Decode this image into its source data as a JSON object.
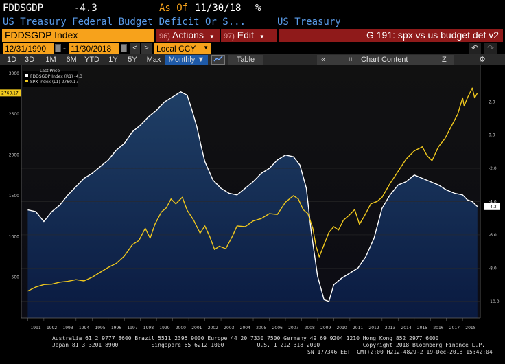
{
  "header": {
    "ticker": "FDDSGDP",
    "last_value": "-4.3",
    "as_of_label": "As Of",
    "as_of_date": "11/30/18",
    "pct_sign": "%",
    "description": "US Treasury Federal Budget Deficit Or S...",
    "source": "US Treasury"
  },
  "toolbar": {
    "security": "FDDSGDP Index",
    "actions_num": "96)",
    "actions_label": "Actions",
    "edit_num": "97)",
    "edit_label": "Edit",
    "chart_title": "G 191: spx vs us budget def v2",
    "start_date": "12/31/1990",
    "end_date": "11/30/2018",
    "currency": "Local CCY",
    "nav_prev": "<",
    "nav_next": ">"
  },
  "periods": [
    "1D",
    "3D",
    "1M",
    "6M",
    "YTD",
    "1Y",
    "5Y",
    "Max"
  ],
  "frequency": "Monthly ▼",
  "table_label": "Table",
  "chart_content_label": "Chart Content",
  "chart_data": {
    "type": "line",
    "legend": {
      "header": "Last Price",
      "entries": [
        "FDDSGDP Index (R1) -4.3",
        "SPX Index (L1) 2760.17"
      ]
    },
    "x_labels": [
      "1991",
      "1992",
      "1993",
      "1994",
      "1995",
      "1996",
      "1997",
      "1998",
      "1999",
      "2000",
      "2001",
      "2002",
      "2003",
      "2004",
      "2005",
      "2006",
      "2007",
      "2008",
      "2009",
      "2010",
      "2011",
      "2012",
      "2013",
      "2014",
      "2015",
      "2016",
      "2017",
      "2018"
    ],
    "left_axis": {
      "ylim": [
        0,
        3100
      ],
      "ticks": [
        "3000",
        "2500",
        "2000",
        "1500",
        "1000",
        "500"
      ],
      "last_label": "2760.17"
    },
    "right_axis": {
      "ylim": [
        -11,
        4.2
      ],
      "ticks": [
        "2.0",
        "0.0",
        "-2.0",
        "-4.0",
        "-6.0",
        "-8.0",
        "-10.0"
      ],
      "last_label": "-4.3"
    },
    "series": [
      {
        "name": "FDDSGDP Index (R1)",
        "axis": "right",
        "color": "#ffffff",
        "x": [
          1991.0,
          1991.5,
          1992.0,
          1992.5,
          1993.0,
          1993.5,
          1994.0,
          1994.5,
          1995.0,
          1995.5,
          1996.0,
          1996.5,
          1997.0,
          1997.5,
          1998.0,
          1998.5,
          1999.0,
          1999.5,
          2000.0,
          2000.5,
          2000.9,
          2001.2,
          2001.5,
          2001.8,
          2002.0,
          2002.5,
          2003.0,
          2003.5,
          2004.0,
          2004.5,
          2005.0,
          2005.5,
          2006.0,
          2006.5,
          2007.0,
          2007.5,
          2007.9,
          2008.3,
          2008.6,
          2009.0,
          2009.4,
          2009.7,
          2010.0,
          2010.5,
          2011.0,
          2011.5,
          2012.0,
          2012.5,
          2013.0,
          2013.5,
          2014.0,
          2014.5,
          2015.0,
          2015.5,
          2016.0,
          2016.5,
          2017.0,
          2017.5,
          2018.0,
          2018.3,
          2018.6,
          2018.92
        ],
        "y": [
          -4.5,
          -4.6,
          -5.2,
          -4.6,
          -4.2,
          -3.6,
          -3.1,
          -2.6,
          -2.3,
          -1.9,
          -1.5,
          -0.9,
          -0.5,
          0.2,
          0.6,
          1.1,
          1.5,
          2.0,
          2.3,
          2.6,
          2.4,
          1.5,
          0.5,
          -0.8,
          -1.6,
          -2.7,
          -3.2,
          -3.5,
          -3.6,
          -3.2,
          -2.8,
          -2.3,
          -2.0,
          -1.5,
          -1.2,
          -1.3,
          -1.8,
          -3.2,
          -5.8,
          -8.5,
          -9.9,
          -10.0,
          -9.0,
          -8.6,
          -8.3,
          -8.0,
          -7.3,
          -6.2,
          -4.4,
          -3.6,
          -3.0,
          -2.8,
          -2.4,
          -2.6,
          -2.8,
          -3.0,
          -3.3,
          -3.5,
          -3.6,
          -3.9,
          -4.0,
          -4.3
        ]
      },
      {
        "name": "SPX Index (L1)",
        "axis": "left",
        "color": "#f0c81e",
        "x": [
          1991.0,
          1991.5,
          1992.0,
          1992.5,
          1993.0,
          1993.5,
          1994.0,
          1994.5,
          1995.0,
          1995.5,
          1996.0,
          1996.5,
          1997.0,
          1997.5,
          1997.9,
          1998.3,
          1998.6,
          1998.9,
          1999.3,
          1999.6,
          1999.9,
          2000.2,
          2000.6,
          2000.9,
          2001.3,
          2001.7,
          2002.0,
          2002.3,
          2002.6,
          2002.9,
          2003.3,
          2003.7,
          2004.0,
          2004.5,
          2005.0,
          2005.5,
          2006.0,
          2006.5,
          2007.0,
          2007.5,
          2007.8,
          2008.1,
          2008.4,
          2008.7,
          2008.9,
          2009.1,
          2009.4,
          2009.7,
          2010.0,
          2010.3,
          2010.6,
          2010.9,
          2011.3,
          2011.6,
          2011.9,
          2012.3,
          2012.7,
          2013.0,
          2013.5,
          2014.0,
          2014.5,
          2015.0,
          2015.5,
          2015.8,
          2016.1,
          2016.5,
          2016.9,
          2017.3,
          2017.7,
          2018.0,
          2018.1,
          2018.3,
          2018.6,
          2018.75,
          2018.92
        ],
        "y": [
          330,
          380,
          410,
          415,
          440,
          450,
          470,
          455,
          500,
          560,
          620,
          670,
          760,
          900,
          950,
          1100,
          980,
          1150,
          1300,
          1350,
          1460,
          1400,
          1480,
          1320,
          1200,
          1040,
          1130,
          1000,
          840,
          880,
          850,
          1000,
          1130,
          1120,
          1190,
          1220,
          1280,
          1270,
          1420,
          1500,
          1460,
          1330,
          1280,
          1100,
          880,
          750,
          900,
          1050,
          1120,
          1080,
          1200,
          1250,
          1330,
          1150,
          1250,
          1400,
          1430,
          1480,
          1650,
          1800,
          1950,
          2050,
          2100,
          1990,
          1930,
          2100,
          2200,
          2350,
          2500,
          2700,
          2600,
          2700,
          2820,
          2700,
          2760
        ]
      }
    ]
  },
  "footer": {
    "line1": "Australia 61 2 9777 8600 Brazil 5511 2395 9000 Europe 44 20 7330 7500 Germany 49 69 9204 1210 Hong Kong 852 2977 6000",
    "line2": "Japan 81 3 3201 8900          Singapore 65 6212 1000          U.S. 1 212 318 2000             Copyright 2018 Bloomberg Finance L.P.",
    "line3": "SN 177346 EET  GMT+2:00 H212-4829-2 19-Dec-2018 15:42:04"
  }
}
